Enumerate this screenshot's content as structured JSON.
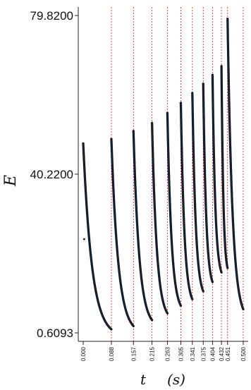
{
  "chart_data": {
    "type": "line",
    "title": "",
    "xlabel": "t",
    "xlabel_unit": "(s)",
    "ylabel": "E",
    "xlim": [
      0.0,
      0.5
    ],
    "ylim": [
      0.6093,
      79.82
    ],
    "y_ticks": [
      "79.8200",
      "40.2200",
      "0.6093"
    ],
    "y_tick_values": [
      79.82,
      40.22,
      0.6093
    ],
    "x_ticks": [
      "0.000",
      "0.088",
      "0.157",
      "0.215",
      "0.263",
      "0.305",
      "0.341",
      "0.375",
      "0.404",
      "0.432",
      "0.451",
      "0.500"
    ],
    "x_tick_values": [
      0.0,
      0.088,
      0.157,
      0.215,
      0.263,
      0.305,
      0.341,
      0.375,
      0.404,
      0.432,
      0.451,
      0.5
    ],
    "grid": false,
    "reset_lines_color": "#e03030",
    "curve_color": "#101010",
    "highlight_color": "#2a6fd6",
    "segments": [
      {
        "t_start": 0.0,
        "t_end": 0.088,
        "E_start": 47.9,
        "E_end": 1.5
      },
      {
        "t_start": 0.088,
        "t_end": 0.157,
        "E_start": 49.0,
        "E_end": 2.3
      },
      {
        "t_start": 0.157,
        "t_end": 0.215,
        "E_start": 51.0,
        "E_end": 3.8
      },
      {
        "t_start": 0.215,
        "t_end": 0.263,
        "E_start": 53.0,
        "E_end": 5.5
      },
      {
        "t_start": 0.263,
        "t_end": 0.305,
        "E_start": 55.5,
        "E_end": 7.4
      },
      {
        "t_start": 0.305,
        "t_end": 0.341,
        "E_start": 58.0,
        "E_end": 9.0
      },
      {
        "t_start": 0.341,
        "t_end": 0.375,
        "E_start": 60.5,
        "E_end": 11.0
      },
      {
        "t_start": 0.375,
        "t_end": 0.404,
        "E_start": 62.8,
        "E_end": 13.3
      },
      {
        "t_start": 0.404,
        "t_end": 0.432,
        "E_start": 65.0,
        "E_end": 15.7
      },
      {
        "t_start": 0.432,
        "t_end": 0.451,
        "E_start": 67.2,
        "E_end": 16.8
      },
      {
        "t_start": 0.451,
        "t_end": 0.5,
        "E_start": 79.0,
        "E_end": 6.5
      }
    ],
    "outlier_points": [
      {
        "t": 0.003,
        "E": 24.0
      }
    ]
  }
}
